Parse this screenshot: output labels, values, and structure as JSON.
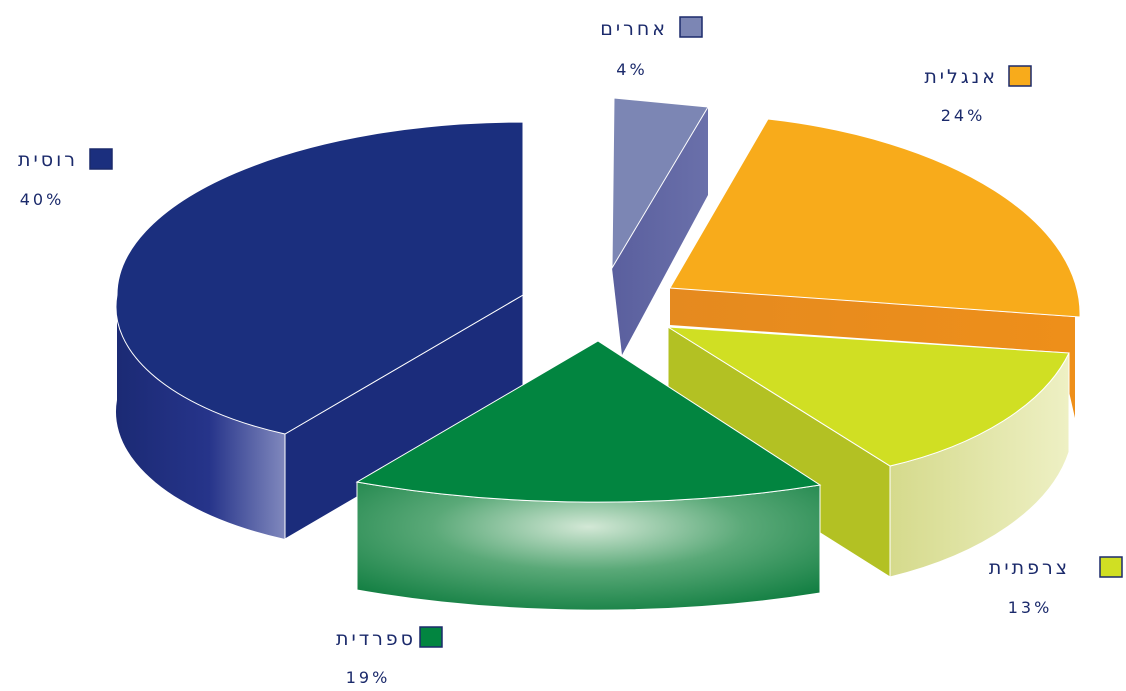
{
  "chart_data": {
    "type": "pie",
    "title": "",
    "three_d": true,
    "exploded": true,
    "slices": [
      {
        "label": "רוסית",
        "percent_label": "40%",
        "value": 40,
        "color": "#1b2f7e",
        "side_color": "#25347e"
      },
      {
        "label": "אחרים",
        "percent_label": "4%",
        "value": 4,
        "color": "#7c86b4",
        "side_color": "#5d62a0"
      },
      {
        "label": "אנגלית",
        "percent_label": "24%",
        "value": 24,
        "color": "#f8ab1b",
        "side_color": "#e2831f"
      },
      {
        "label": "צרפתית",
        "percent_label": "13%",
        "value": 13,
        "color": "#d0df23",
        "side_color": "#b3c123"
      },
      {
        "label": "ספרדית",
        "percent_label": "19%",
        "value": 19,
        "color": "#028540",
        "side_color": "#0e7d3f"
      }
    ]
  }
}
